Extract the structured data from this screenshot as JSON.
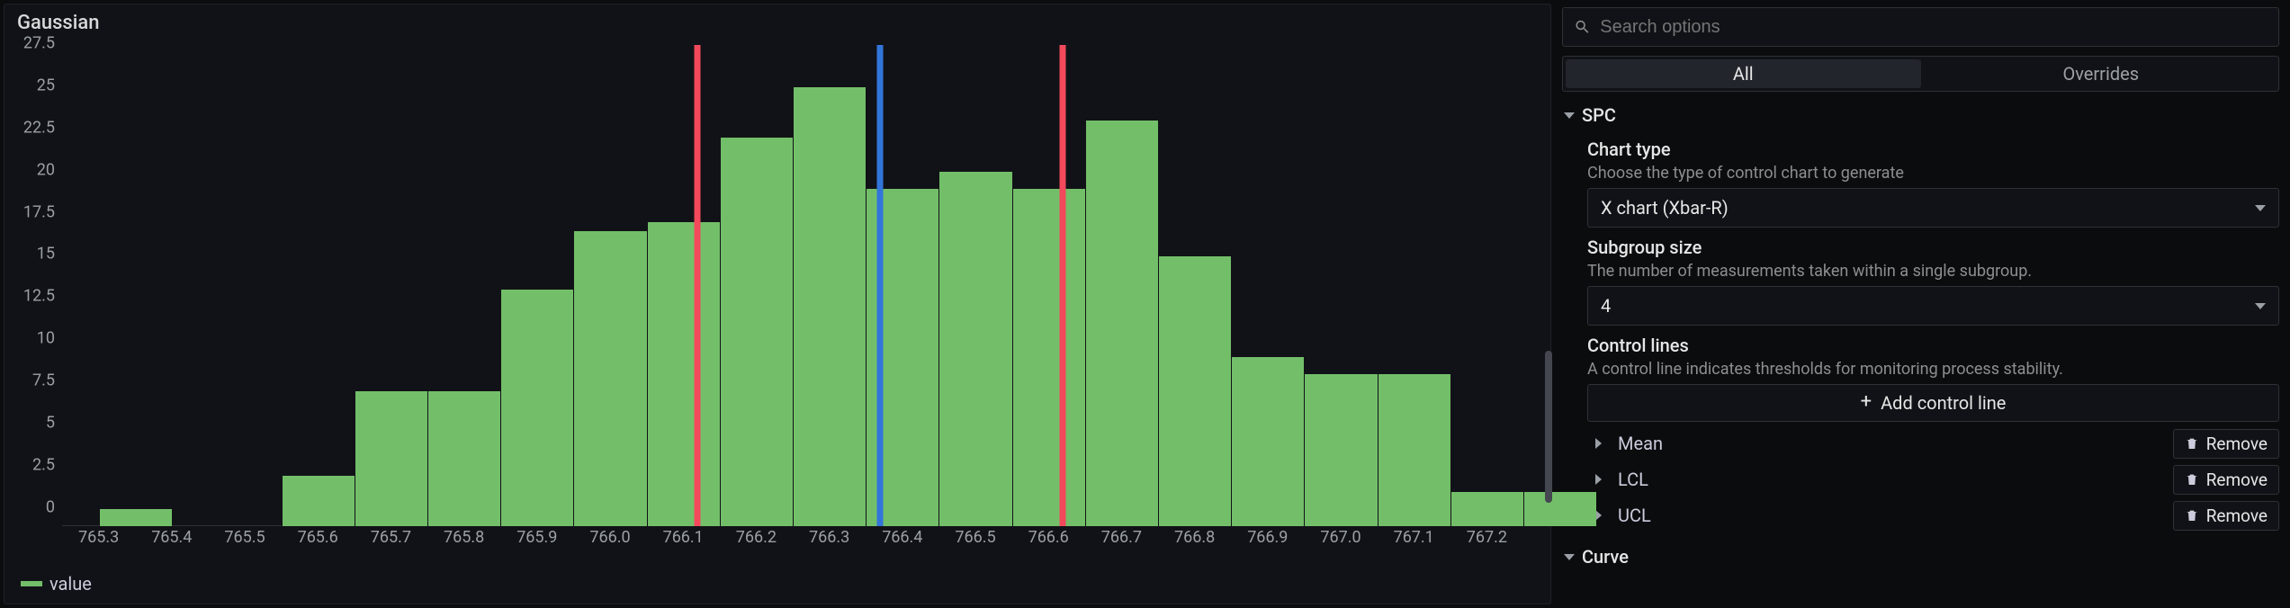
{
  "panel": {
    "title": "Gaussian",
    "legend_label": "value",
    "legend_color": "#73bf69"
  },
  "chart": {
    "type": "histogram",
    "background_color": "#111217",
    "bar_color": "#73bf69",
    "axis_label_color": "#9aa0a6",
    "axis_font_size": 18,
    "x_ticks": [
      "765.3",
      "765.4",
      "765.5",
      "765.6",
      "765.7",
      "765.8",
      "765.9",
      "766.0",
      "766.1",
      "766.2",
      "766.3",
      "766.4",
      "766.5",
      "766.6",
      "766.7",
      "766.8",
      "766.9",
      "767.0",
      "767.1",
      "767.2"
    ],
    "x_min": 765.25,
    "x_max": 767.25,
    "y_ticks": [
      0,
      2.5,
      5,
      7.5,
      10,
      12.5,
      15,
      17.5,
      20,
      22.5,
      25,
      27.5
    ],
    "y_min": 0,
    "y_max": 28.5,
    "bins": [
      {
        "start": 765.3,
        "end": 765.4,
        "count": 1
      },
      {
        "start": 765.55,
        "end": 765.65,
        "count": 3
      },
      {
        "start": 765.65,
        "end": 765.75,
        "count": 8
      },
      {
        "start": 765.75,
        "end": 765.85,
        "count": 8
      },
      {
        "start": 765.85,
        "end": 765.95,
        "count": 14
      },
      {
        "start": 765.95,
        "end": 766.05,
        "count": 17.5
      },
      {
        "start": 766.05,
        "end": 766.15,
        "count": 18
      },
      {
        "start": 766.15,
        "end": 766.25,
        "count": 23
      },
      {
        "start": 766.25,
        "end": 766.35,
        "count": 26
      },
      {
        "start": 766.35,
        "end": 766.45,
        "count": 20
      },
      {
        "start": 766.45,
        "end": 766.55,
        "count": 21
      },
      {
        "start": 766.55,
        "end": 766.65,
        "count": 20
      },
      {
        "start": 766.65,
        "end": 766.75,
        "count": 24
      },
      {
        "start": 766.75,
        "end": 766.85,
        "count": 16
      },
      {
        "start": 766.85,
        "end": 766.95,
        "count": 10
      },
      {
        "start": 766.95,
        "end": 767.05,
        "count": 9
      },
      {
        "start": 767.05,
        "end": 767.15,
        "count": 9
      },
      {
        "start": 767.15,
        "end": 767.25,
        "count": 2
      },
      {
        "start": 767.25,
        "end": 767.35,
        "count": 2
      }
    ],
    "vlines": [
      {
        "name": "LCL",
        "x": 766.12,
        "color": "#f2495c",
        "width": 7
      },
      {
        "name": "Mean",
        "x": 766.37,
        "color": "#3274d9",
        "width": 7
      },
      {
        "name": "UCL",
        "x": 766.62,
        "color": "#f2495c",
        "width": 7
      }
    ]
  },
  "sidebar": {
    "search_placeholder": "Search options",
    "tabs": {
      "all": "All",
      "overrides": "Overrides",
      "active": "all"
    },
    "sections": [
      {
        "key": "spc",
        "title": "SPC",
        "fields": {
          "chart_type": {
            "label": "Chart type",
            "desc": "Choose the type of control chart to generate",
            "value": "X chart (Xbar-R)"
          },
          "subgroup": {
            "label": "Subgroup size",
            "desc": "The number of measurements taken within a single subgroup.",
            "value": "4"
          },
          "control_lines": {
            "label": "Control lines",
            "desc": "A control line indicates thresholds for monitoring process stability.",
            "add_label": "Add control line",
            "remove_label": "Remove",
            "items": [
              "Mean",
              "LCL",
              "UCL"
            ]
          }
        }
      },
      {
        "key": "curve",
        "title": "Curve"
      }
    ]
  }
}
